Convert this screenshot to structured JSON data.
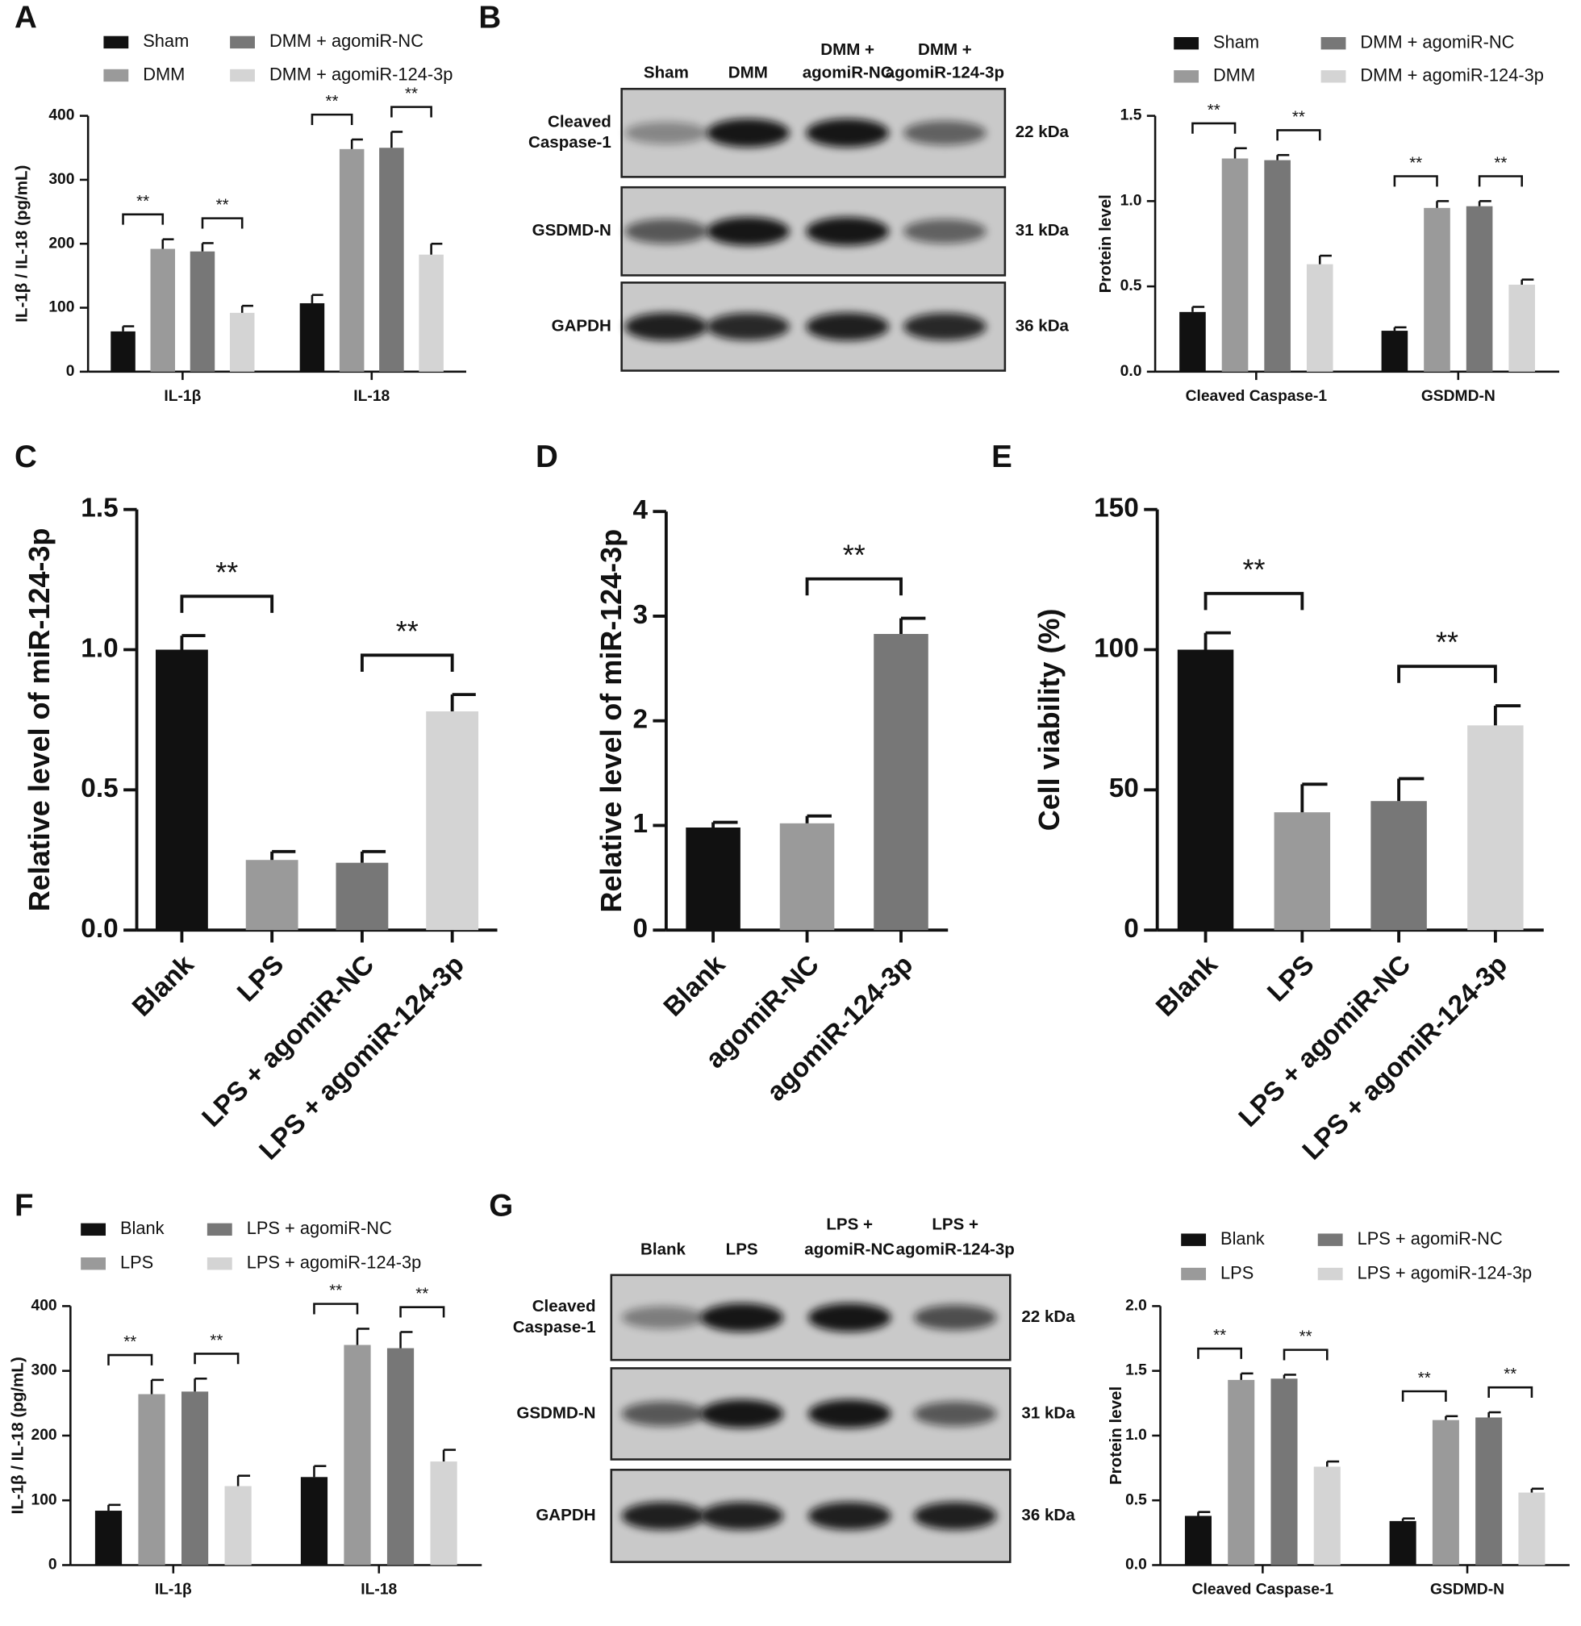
{
  "panel_labels": [
    "A",
    "B",
    "C",
    "D",
    "E",
    "F",
    "G"
  ],
  "blots": [
    {
      "lanes": [
        [
          "Sham"
        ],
        [
          "DMM"
        ],
        [
          "DMM +",
          "agomiR-NC"
        ],
        [
          "DMM +",
          "agomiR-124-3p"
        ]
      ],
      "bands": [
        {
          "name": [
            "Cleaved",
            "Caspase-1"
          ],
          "size": "22 kDa"
        },
        {
          "name": [
            "GSDMD-N"
          ],
          "size": "31 kDa"
        },
        {
          "name": [
            "GAPDH"
          ],
          "size": "36 kDa"
        }
      ]
    },
    {
      "lanes": [
        [
          "Blank"
        ],
        [
          "LPS"
        ],
        [
          "LPS +",
          "agomiR-NC"
        ],
        [
          "LPS +",
          "agomiR-124-3p"
        ]
      ],
      "bands": [
        {
          "name": [
            "Cleaved",
            "Caspase-1"
          ],
          "size": "22 kDa"
        },
        {
          "name": [
            "GSDMD-N"
          ],
          "size": "31 kDa"
        },
        {
          "name": [
            "GAPDH"
          ],
          "size": "36 kDa"
        }
      ]
    }
  ],
  "chart_data": [
    {
      "type": "bar",
      "y_label": "IL-1β / IL-18  (pg/mL)",
      "categories": [
        "IL-1β",
        "IL-18"
      ],
      "series": [
        {
          "name": "Sham",
          "color": "#111111",
          "values": [
            63,
            107
          ],
          "errors": [
            8,
            13
          ]
        },
        {
          "name": "DMM",
          "color": "#9a9a9a",
          "values": [
            192,
            348
          ],
          "errors": [
            15,
            15
          ]
        },
        {
          "name": "DMM + agomiR-NC",
          "color": "#777777",
          "values": [
            188,
            350
          ],
          "errors": [
            13,
            25
          ]
        },
        {
          "name": "DMM + agomiR-124-3p",
          "color": "#d4d4d4",
          "values": [
            92,
            183
          ],
          "errors": [
            11,
            17
          ]
        }
      ],
      "ylim": [
        0,
        400
      ],
      "yticks": [
        0,
        100,
        200,
        300,
        400
      ],
      "annotations": [
        "**",
        "**",
        "**",
        "**"
      ]
    },
    {
      "type": "bar",
      "y_label": "Protein level",
      "categories": [
        "Cleaved Caspase-1",
        "GSDMD-N"
      ],
      "series": [
        {
          "name": "Sham",
          "color": "#111111",
          "values": [
            0.35,
            0.24
          ],
          "errors": [
            0.03,
            0.02
          ]
        },
        {
          "name": "DMM",
          "color": "#9a9a9a",
          "values": [
            1.25,
            0.96
          ],
          "errors": [
            0.06,
            0.04
          ]
        },
        {
          "name": "DMM + agomiR-NC",
          "color": "#777777",
          "values": [
            1.24,
            0.97
          ],
          "errors": [
            0.03,
            0.03
          ]
        },
        {
          "name": "DMM + agomiR-124-3p",
          "color": "#d4d4d4",
          "values": [
            0.63,
            0.51
          ],
          "errors": [
            0.05,
            0.03
          ]
        }
      ],
      "ylim": [
        0,
        1.5
      ],
      "yticks": [
        {
          "value": 0,
          "label": "0.0"
        },
        0.5,
        {
          "value": 1,
          "label": "1.0"
        },
        1.5
      ],
      "annotations": [
        "**",
        "**",
        "**",
        "**"
      ]
    },
    {
      "type": "bar",
      "y_label": "Relative level of miR-124-3p",
      "categories": [
        "Blank",
        "LPS",
        "LPS + agomiR-NC",
        "LPS + agomiR-124-3p"
      ],
      "values": [
        1.0,
        0.25,
        0.24,
        0.78
      ],
      "errors": [
        0.05,
        0.03,
        0.04,
        0.06
      ],
      "colors": [
        "#111111",
        "#9a9a9a",
        "#777777",
        "#d4d4d4"
      ],
      "ylim": [
        0,
        1.5
      ],
      "yticks": [
        {
          "value": 0,
          "label": "0.0"
        },
        0.5,
        {
          "value": 1,
          "label": "1.0"
        },
        1.5
      ],
      "annotations": [
        "**",
        "**"
      ]
    },
    {
      "type": "bar",
      "y_label": "Relative level of miR-124-3p",
      "categories": [
        "Blank",
        "agomiR-NC",
        "agomiR-124-3p"
      ],
      "values": [
        0.98,
        1.02,
        2.83
      ],
      "errors": [
        0.05,
        0.07,
        0.15
      ],
      "colors": [
        "#111111",
        "#9a9a9a",
        "#777777"
      ],
      "ylim": [
        0,
        4
      ],
      "yticks": [
        0,
        1,
        2,
        3,
        4
      ],
      "annotations": [
        "**"
      ]
    },
    {
      "type": "bar",
      "y_label": "Cell viability (%)",
      "categories": [
        "Blank",
        "LPS",
        "LPS + agomiR-NC",
        "LPS + agomiR-124-3p"
      ],
      "values": [
        100,
        42,
        46,
        73
      ],
      "errors": [
        6,
        10,
        8,
        7
      ],
      "colors": [
        "#111111",
        "#9a9a9a",
        "#777777",
        "#d4d4d4"
      ],
      "ylim": [
        0,
        150
      ],
      "yticks": [
        0,
        50,
        100,
        150
      ],
      "annotations": [
        "**",
        "**"
      ]
    },
    {
      "type": "bar",
      "y_label": "IL-1β / IL-18  (pg/mL)",
      "categories": [
        "IL-1β",
        "IL-18"
      ],
      "series": [
        {
          "name": "Blank",
          "color": "#111111",
          "values": [
            84,
            136
          ],
          "errors": [
            9,
            17
          ]
        },
        {
          "name": "LPS",
          "color": "#9a9a9a",
          "values": [
            264,
            340
          ],
          "errors": [
            22,
            25
          ]
        },
        {
          "name": "LPS + agomiR-NC",
          "color": "#777777",
          "values": [
            268,
            335
          ],
          "errors": [
            20,
            25
          ]
        },
        {
          "name": "LPS + agomiR-124-3p",
          "color": "#d4d4d4",
          "values": [
            122,
            160
          ],
          "errors": [
            16,
            18
          ]
        }
      ],
      "ylim": [
        0,
        400
      ],
      "yticks": [
        0,
        100,
        200,
        300,
        400
      ],
      "annotations": [
        "**",
        "**",
        "**",
        "**"
      ]
    },
    {
      "type": "bar",
      "y_label": "Protein level",
      "categories": [
        "Cleaved Caspase-1",
        "GSDMD-N"
      ],
      "series": [
        {
          "name": "Blank",
          "color": "#111111",
          "values": [
            0.38,
            0.34
          ],
          "errors": [
            0.03,
            0.02
          ]
        },
        {
          "name": "LPS",
          "color": "#9a9a9a",
          "values": [
            1.43,
            1.12
          ],
          "errors": [
            0.05,
            0.03
          ]
        },
        {
          "name": "LPS + agomiR-NC",
          "color": "#777777",
          "values": [
            1.44,
            1.14
          ],
          "errors": [
            0.03,
            0.04
          ]
        },
        {
          "name": "LPS + agomiR-124-3p",
          "color": "#d4d4d4",
          "values": [
            0.76,
            0.56
          ],
          "errors": [
            0.04,
            0.03
          ]
        }
      ],
      "ylim": [
        0,
        2
      ],
      "yticks": [
        {
          "value": 0,
          "label": "0.0"
        },
        0.5,
        {
          "value": 1,
          "label": "1.0"
        },
        1.5,
        {
          "value": 2,
          "label": "2.0"
        }
      ],
      "annotations": [
        "**",
        "**",
        "**",
        "**"
      ]
    }
  ]
}
